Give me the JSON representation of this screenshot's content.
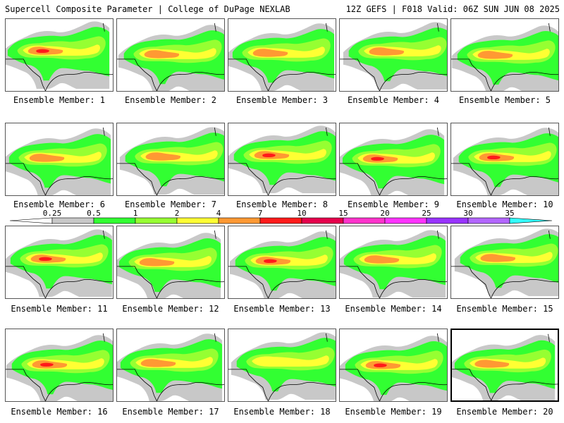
{
  "header": {
    "left": "Supercell Composite Parameter | College of DuPage NEXLAB",
    "right": "12Z GEFS | F018 Valid: 06Z SUN JUN 08 2025"
  },
  "members": [
    {
      "label": "Ensemble Member: 1",
      "peak": "red"
    },
    {
      "label": "Ensemble Member: 2",
      "peak": "orange"
    },
    {
      "label": "Ensemble Member: 3",
      "peak": "orange"
    },
    {
      "label": "Ensemble Member: 4",
      "peak": "orange"
    },
    {
      "label": "Ensemble Member: 5",
      "peak": "orange"
    },
    {
      "label": "Ensemble Member: 6",
      "peak": "orange"
    },
    {
      "label": "Ensemble Member: 7",
      "peak": "orange"
    },
    {
      "label": "Ensemble Member: 8",
      "peak": "red"
    },
    {
      "label": "Ensemble Member: 9",
      "peak": "red"
    },
    {
      "label": "Ensemble Member: 10",
      "peak": "red"
    },
    {
      "label": "Ensemble Member: 11",
      "peak": "red"
    },
    {
      "label": "Ensemble Member: 12",
      "peak": "orange"
    },
    {
      "label": "Ensemble Member: 13",
      "peak": "red"
    },
    {
      "label": "Ensemble Member: 14",
      "peak": "orange"
    },
    {
      "label": "Ensemble Member: 15",
      "peak": "orange"
    },
    {
      "label": "Ensemble Member: 16",
      "peak": "red"
    },
    {
      "label": "Ensemble Member: 17",
      "peak": "orange"
    },
    {
      "label": "Ensemble Member: 18",
      "peak": "yellow"
    },
    {
      "label": "Ensemble Member: 19",
      "peak": "red"
    },
    {
      "label": "Ensemble Member: 20",
      "peak": "orange",
      "selected": true
    }
  ],
  "legend": {
    "levels": [
      "0.25",
      "0.5",
      "1",
      "2",
      "4",
      "7",
      "10",
      "15",
      "20",
      "25",
      "30",
      "35"
    ],
    "colors": [
      "#c8c8c8",
      "#32ff32",
      "#96ff32",
      "#ffff33",
      "#ff9933",
      "#ff1a1a",
      "#e6004c",
      "#ff33cc",
      "#ff33ff",
      "#9933ff",
      "#b366ff",
      "#33ffff"
    ]
  },
  "map_colors": {
    "gray": "#c8c8c8",
    "green": "#32ff32",
    "lightgreen": "#96ff32",
    "yellow": "#ffff33",
    "orange": "#ff9933",
    "red": "#ff1a1a"
  }
}
